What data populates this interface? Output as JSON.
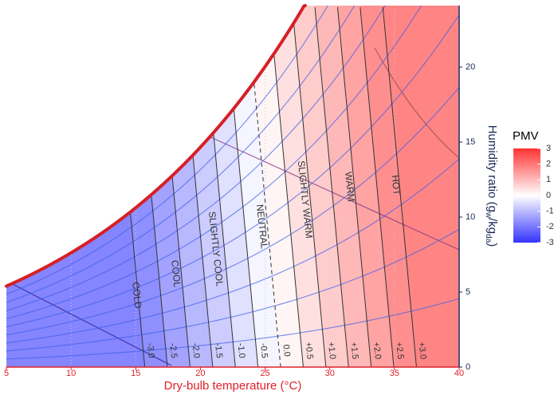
{
  "chart_data": {
    "type": "psychrometric",
    "x_label": "Dry-bulb temperature (°C)",
    "y2_label": [
      "Humidity ratio (g",
      "w",
      "/kg",
      "da",
      ")"
    ],
    "xlim": [
      5,
      40
    ],
    "xticks": [
      5,
      10,
      15,
      20,
      25,
      30,
      35,
      40
    ],
    "y2lim": [
      0,
      24.1
    ],
    "y2ticks": [
      0,
      5,
      10,
      15,
      20
    ],
    "x_axis_color": "#e0202a",
    "y2_axis_color": "#1a2a5a",
    "saturation_color": "#d61f26",
    "rh_curves": {
      "values": [
        10,
        20,
        30,
        40,
        50,
        60,
        70,
        80,
        90
      ],
      "color": "#3a5ee8"
    },
    "isolines": [
      {
        "value": -3,
        "label": "-3.0",
        "x": [
          15.7,
          13.1
        ],
        "y": [
          0,
          24
        ]
      },
      {
        "value": -2.5,
        "label": "-2.5",
        "x": [
          17.45,
          14.85
        ],
        "y": [
          0,
          24
        ]
      },
      {
        "value": -2,
        "label": "-2.0",
        "x": [
          19.2,
          16.6
        ],
        "y": [
          0,
          24
        ]
      },
      {
        "value": -1.5,
        "label": "-1.5",
        "x": [
          20.95,
          18.35
        ],
        "y": [
          0,
          24
        ]
      },
      {
        "value": -1,
        "label": "-1.0",
        "x": [
          22.7,
          20.1
        ],
        "y": [
          0,
          24
        ]
      },
      {
        "value": -0.5,
        "label": "-0.5",
        "x": [
          24.45,
          21.85
        ],
        "y": [
          0,
          24
        ]
      },
      {
        "value": 0,
        "label": "0.0",
        "x": [
          26.2,
          23.6
        ],
        "y": [
          0,
          24
        ],
        "dashed": true
      },
      {
        "value": 0.5,
        "label": "+0.5",
        "x": [
          27.95,
          25.35
        ],
        "y": [
          0,
          24
        ]
      },
      {
        "value": 1,
        "label": "+1.0",
        "x": [
          29.7,
          27.1
        ],
        "y": [
          0,
          24
        ]
      },
      {
        "value": 1.5,
        "label": "+1.5",
        "x": [
          31.45,
          28.85
        ],
        "y": [
          0,
          24
        ]
      },
      {
        "value": 2,
        "label": "+2.0",
        "x": [
          33.2,
          30.6
        ],
        "y": [
          0,
          24
        ]
      },
      {
        "value": 2.5,
        "label": "+2.5",
        "x": [
          34.95,
          32.35
        ],
        "y": [
          0,
          24
        ]
      },
      {
        "value": 3,
        "label": "+3.0",
        "x": [
          36.7,
          34.1
        ],
        "y": [
          0,
          24
        ]
      }
    ],
    "zones": [
      "COLD",
      "COOL",
      "SLIGHTLY COOL",
      "NEUTRAL",
      "SLIGHTLY WARM",
      "WARM",
      "HOT"
    ],
    "colorbar": {
      "title": "PMV",
      "lim": [
        -3,
        3
      ],
      "ticks": [
        3,
        2,
        1,
        0,
        -1,
        -2,
        -3
      ],
      "colors": [
        "#3333ff",
        "#ffffff",
        "#ff3333"
      ]
    }
  }
}
